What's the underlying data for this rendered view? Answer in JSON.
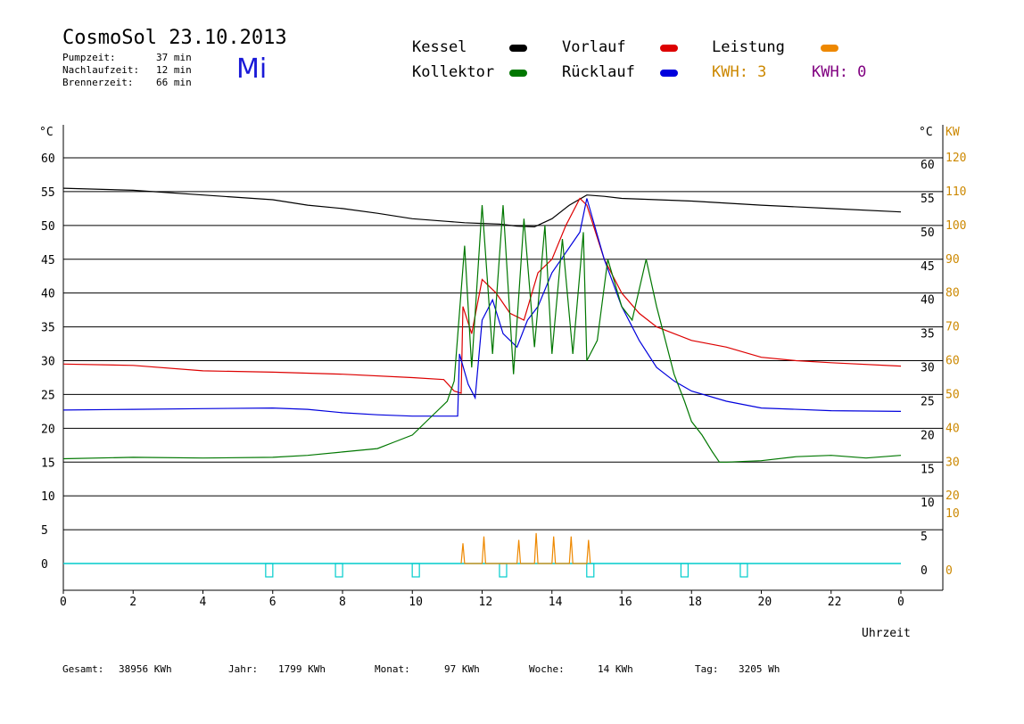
{
  "header": {
    "title": "CosmoSol 23.10.2013",
    "day": "Mi",
    "stats": [
      {
        "label": "Pumpzeit:",
        "value": "37 min"
      },
      {
        "label": "Nachlaufzeit:",
        "value": "12 min"
      },
      {
        "label": "Brennerzeit:",
        "value": "66 min"
      }
    ]
  },
  "legend": {
    "items": [
      {
        "label": "Kessel",
        "color": "#000000"
      },
      {
        "label": "Vorlauf",
        "color": "#dd0000"
      },
      {
        "label": "Leistung",
        "color": "#ee8800"
      },
      {
        "label": "Kollektor",
        "color": "#007700"
      },
      {
        "label": "Rücklauf",
        "color": "#0000dd"
      }
    ],
    "kwh_orange": "KWH: 3",
    "kwh_purple": "KWH: 0",
    "kwh_orange_color": "#cc8800",
    "kwh_purple_color": "#800080"
  },
  "footer": {
    "gesamt_label": "Gesamt:",
    "gesamt_value": "38956 KWh",
    "jahr_label": "Jahr:",
    "jahr_value": "1799 KWh",
    "monat_label": "Monat:",
    "monat_value": "97 KWh",
    "woche_label": "Woche:",
    "woche_value": "14 KWh",
    "tag_label": "Tag:",
    "tag_value": "3205 Wh"
  },
  "chart_data": {
    "type": "line",
    "title": "CosmoSol 23.10.2013",
    "xlabel": "Uhrzeit",
    "ylabel_left": "°C",
    "ylabel_right_1": "°C",
    "ylabel_right_2": "KW",
    "xlim": [
      0,
      24
    ],
    "ylim": [
      0,
      60
    ],
    "grid": true,
    "x_tick_labels": [
      "0",
      "2",
      "4",
      "6",
      "8",
      "10",
      "12",
      "14",
      "16",
      "18",
      "20",
      "22",
      "0"
    ],
    "y_ticks": [
      0,
      5,
      10,
      15,
      20,
      25,
      30,
      35,
      40,
      45,
      50,
      55,
      60
    ],
    "y_right_kw_labels": [
      "10",
      "20",
      "30",
      "40",
      "50",
      "60",
      "70",
      "80",
      "90",
      "100",
      "110",
      "120"
    ],
    "series": [
      {
        "name": "Kessel",
        "color": "#000000",
        "x": [
          0,
          2,
          4,
          6,
          7,
          8,
          9,
          10,
          11,
          11.5,
          12,
          12.5,
          13,
          13.5,
          14,
          14.5,
          15,
          15.5,
          16,
          18,
          20,
          22,
          24
        ],
        "y": [
          55.5,
          55.2,
          54.5,
          53.8,
          53,
          52.5,
          51.8,
          51,
          50.6,
          50.4,
          50.3,
          50.2,
          49.9,
          49.8,
          51,
          53,
          54.5,
          54.3,
          54,
          53.6,
          53,
          52.5,
          52
        ]
      },
      {
        "name": "Vorlauf",
        "color": "#dd0000",
        "x": [
          0,
          2,
          4,
          6,
          8,
          10,
          10.9,
          11.2,
          11.4,
          11.45,
          11.7,
          12,
          12.4,
          12.8,
          13.2,
          13.6,
          14,
          14.4,
          14.8,
          15,
          15.5,
          16,
          16.5,
          17,
          17.5,
          18,
          19,
          20,
          21,
          22,
          24
        ],
        "y": [
          29.5,
          29.3,
          28.5,
          28.3,
          28,
          27.5,
          27.2,
          25.5,
          25.2,
          38,
          34,
          42,
          40,
          37,
          36,
          43,
          45,
          50,
          54,
          53,
          45,
          40,
          37,
          35,
          34,
          33,
          32,
          30.5,
          30,
          29.7,
          29.2
        ]
      },
      {
        "name": "Rücklauf",
        "color": "#0000dd",
        "x": [
          0,
          2,
          4,
          6,
          7,
          8,
          9,
          10,
          11,
          11.3,
          11.35,
          11.6,
          11.8,
          12,
          12.3,
          12.6,
          13,
          13.3,
          13.6,
          14,
          14.4,
          14.8,
          15,
          15.5,
          16,
          16.5,
          17,
          17.5,
          18,
          19,
          20,
          22,
          24
        ],
        "y": [
          22.7,
          22.8,
          22.9,
          23,
          22.8,
          22.3,
          22,
          21.8,
          21.8,
          21.8,
          31,
          26.5,
          24.5,
          36,
          39,
          34,
          32,
          36,
          38,
          43,
          46,
          49,
          54,
          45,
          38,
          33,
          29,
          27,
          25.5,
          24,
          23,
          22.6,
          22.5
        ]
      },
      {
        "name": "Kollektor",
        "color": "#007700",
        "x": [
          0,
          2,
          4,
          6,
          7,
          8,
          9,
          9.5,
          10,
          10.5,
          11,
          11.2,
          11.5,
          11.7,
          12,
          12.3,
          12.6,
          12.9,
          13.2,
          13.5,
          13.8,
          14,
          14.3,
          14.6,
          14.9,
          15,
          15.3,
          15.6,
          16,
          16.3,
          16.7,
          17,
          17.2,
          17.5,
          17.8,
          18,
          18.3,
          18.6,
          18.8,
          19,
          20,
          21,
          22,
          23,
          24
        ],
        "y": [
          15.5,
          15.7,
          15.6,
          15.7,
          16,
          16.5,
          17,
          18,
          19,
          21.5,
          24,
          27,
          47,
          29,
          53,
          31,
          53,
          28,
          51,
          32,
          50,
          31,
          48,
          31,
          49,
          30,
          33,
          45,
          38,
          36,
          45,
          38,
          34,
          28,
          24,
          21,
          19,
          16.5,
          15,
          15,
          15.2,
          15.8,
          16,
          15.6,
          16
        ]
      },
      {
        "name": "Leistung",
        "color": "#ee8800",
        "x": [
          11.4,
          11.45,
          11.5,
          12,
          12.05,
          12.1,
          13,
          13.05,
          13.1,
          13.5,
          13.55,
          13.6,
          14,
          14.05,
          14.1,
          14.5,
          14.55,
          14.6,
          15,
          15.05,
          15.1
        ],
        "y": [
          0,
          3,
          0,
          0,
          4,
          0,
          0,
          3.5,
          0,
          0,
          4.5,
          0,
          0,
          4,
          0,
          0,
          4,
          0,
          0,
          3.5,
          0
        ]
      }
    ]
  }
}
